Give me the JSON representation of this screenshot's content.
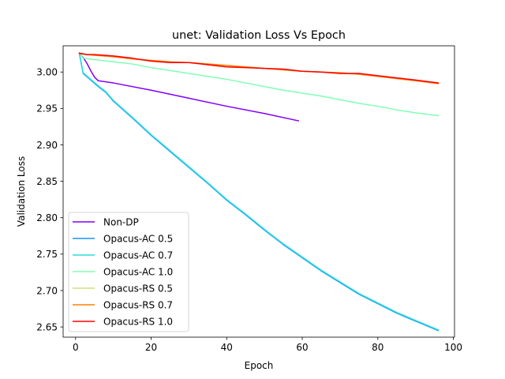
{
  "chart_data": {
    "type": "line",
    "title": "unet: Validation Loss Vs Epoch",
    "xlabel": "Epoch",
    "ylabel": "Validation Loss",
    "xlim": [
      -3.3,
      100.3
    ],
    "ylim": [
      2.636,
      3.036
    ],
    "xticks": [
      0,
      20,
      40,
      60,
      80,
      100
    ],
    "yticks": [
      2.65,
      2.7,
      2.75,
      2.8,
      2.85,
      2.9,
      2.95,
      3.0
    ],
    "ytick_labels": [
      "2.65",
      "2.70",
      "2.75",
      "2.80",
      "2.85",
      "2.90",
      "2.95",
      "3.00"
    ],
    "grid": false,
    "legend_position": "lower-left",
    "series": [
      {
        "name": "Non-DP",
        "color": "#8000ff",
        "x": [
          1,
          2,
          3,
          4,
          5,
          6,
          10,
          20,
          30,
          40,
          50,
          59
        ],
        "y": [
          3.025,
          3.02,
          3.012,
          3.002,
          2.993,
          2.988,
          2.985,
          2.975,
          2.964,
          2.953,
          2.943,
          2.933
        ]
      },
      {
        "name": "Opacus-AC 0.5",
        "color": "#1996f3",
        "x": [
          1,
          2,
          4,
          6,
          8,
          10,
          15,
          20,
          25,
          30,
          35,
          40,
          45,
          50,
          55,
          60,
          65,
          70,
          75,
          80,
          85,
          90,
          96
        ],
        "y": [
          3.025,
          2.998,
          2.989,
          2.98,
          2.972,
          2.96,
          2.937,
          2.913,
          2.891,
          2.869,
          2.847,
          2.824,
          2.804,
          2.783,
          2.763,
          2.745,
          2.727,
          2.711,
          2.695,
          2.682,
          2.669,
          2.658,
          2.645
        ]
      },
      {
        "name": "Opacus-AC 0.7",
        "color": "#2adddd",
        "x": [
          1,
          2,
          4,
          6,
          8,
          10,
          15,
          20,
          25,
          30,
          35,
          40,
          45,
          50,
          55,
          60,
          65,
          70,
          75,
          80,
          85,
          90,
          96
        ],
        "y": [
          3.026,
          2.999,
          2.99,
          2.981,
          2.973,
          2.961,
          2.938,
          2.914,
          2.892,
          2.87,
          2.848,
          2.825,
          2.805,
          2.784,
          2.764,
          2.746,
          2.728,
          2.712,
          2.696,
          2.683,
          2.67,
          2.659,
          2.646
        ]
      },
      {
        "name": "Opacus-AC 1.0",
        "color": "#80ffb4",
        "x": [
          1,
          2,
          5,
          10,
          15,
          20,
          25,
          30,
          35,
          40,
          45,
          50,
          55,
          60,
          65,
          70,
          75,
          80,
          85,
          90,
          96
        ],
        "y": [
          3.026,
          3.019,
          3.017,
          3.014,
          3.011,
          3.006,
          3.002,
          2.998,
          2.994,
          2.99,
          2.985,
          2.98,
          2.975,
          2.971,
          2.967,
          2.962,
          2.957,
          2.953,
          2.948,
          2.944,
          2.94
        ]
      },
      {
        "name": "Opacus-RS 0.5",
        "color": "#d4dd80",
        "x": [
          1,
          5,
          10,
          15,
          20,
          25,
          30,
          35,
          40,
          45,
          50,
          55,
          60,
          65,
          70,
          75,
          80,
          85,
          90,
          96
        ],
        "y": [
          3.025,
          3.023,
          3.021,
          3.018,
          3.015,
          3.013,
          3.013,
          3.011,
          3.009,
          3.007,
          3.005,
          3.003,
          3.001,
          3.0,
          2.998,
          2.997,
          2.994,
          2.991,
          2.988,
          2.984
        ]
      },
      {
        "name": "Opacus-RS 0.7",
        "color": "#ff8000",
        "x": [
          1,
          5,
          10,
          15,
          20,
          25,
          30,
          35,
          40,
          45,
          50,
          55,
          60,
          65,
          70,
          75,
          80,
          85,
          90,
          96
        ],
        "y": [
          3.025,
          3.023,
          3.021,
          3.018,
          3.016,
          3.014,
          3.013,
          3.011,
          3.009,
          3.007,
          3.005,
          3.003,
          3.001,
          3.0,
          2.999,
          2.997,
          2.994,
          2.991,
          2.988,
          2.984
        ]
      },
      {
        "name": "Opacus-RS 1.0",
        "color": "#ff0000",
        "x": [
          1,
          3,
          5,
          10,
          15,
          20,
          25,
          30,
          35,
          40,
          45,
          50,
          55,
          60,
          65,
          70,
          75,
          80,
          85,
          90,
          96
        ],
        "y": [
          3.026,
          3.024,
          3.024,
          3.022,
          3.019,
          3.015,
          3.013,
          3.013,
          3.01,
          3.007,
          3.006,
          3.005,
          3.004,
          3.001,
          3.0,
          2.998,
          2.998,
          2.995,
          2.992,
          2.989,
          2.985
        ]
      }
    ]
  }
}
